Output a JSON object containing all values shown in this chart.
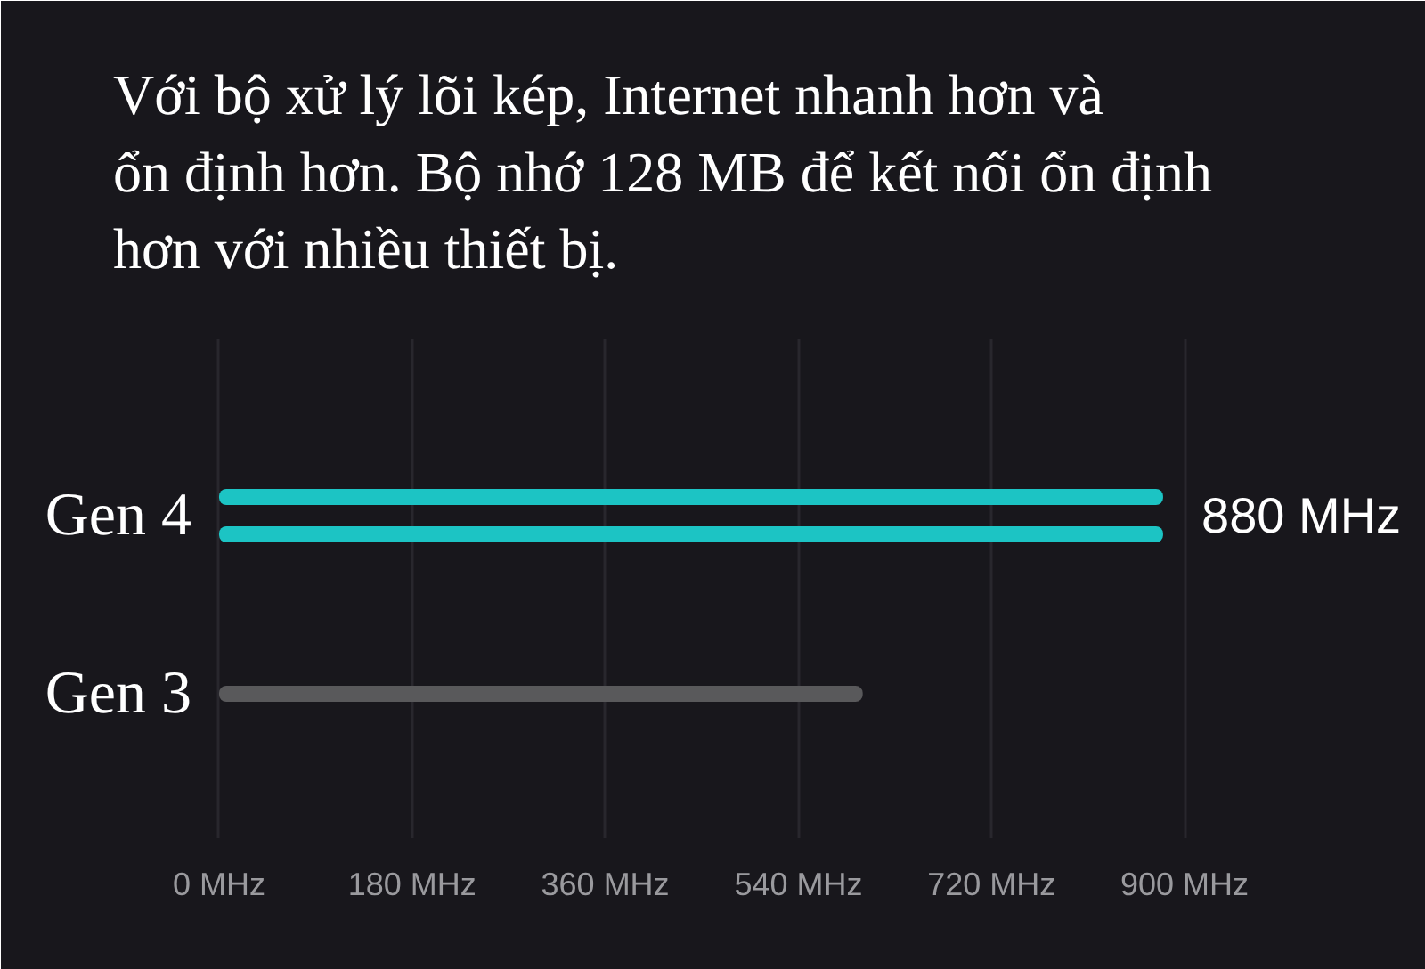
{
  "chart_data": {
    "type": "bar",
    "orientation": "horizontal",
    "title": "Với bộ xử lý lõi kép, Internet nhanh hơn và ổn định hơn. Bộ nhớ 128 MB để kết nối ổn định hơn với nhiều thiết bị.",
    "categories": [
      "Gen 4",
      "Gen 3"
    ],
    "series": [
      {
        "colors": [
          "#1cc4c4",
          "#59595b"
        ],
        "values": [
          880,
          600
        ],
        "value_labels": [
          "880 MHz",
          null
        ]
      },
      {
        "color": "#1cc4c4",
        "values": [
          880,
          null
        ]
      }
    ],
    "xlim": [
      0,
      900
    ],
    "xticks": [
      {
        "value": 0,
        "label": "0 MHz"
      },
      {
        "value": 180,
        "label": "180 MHz"
      },
      {
        "value": 360,
        "label": "360 MHz"
      },
      {
        "value": 540,
        "label": "540 MHz"
      },
      {
        "value": 720,
        "label": "720 MHz"
      },
      {
        "value": 900,
        "label": "900 MHz"
      }
    ],
    "grid": "x"
  }
}
